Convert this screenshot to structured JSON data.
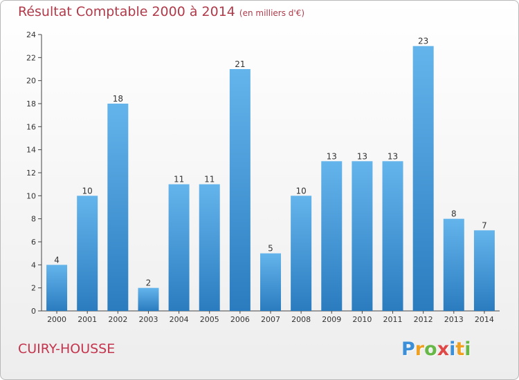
{
  "title": "Résultat Comptable 2000 à 2014",
  "subtitle": "(en milliers d'€)",
  "place": "CUIRY-HOUSSE",
  "logo": {
    "letters": [
      "P",
      "r",
      "o",
      "x",
      "i",
      "t",
      "i"
    ],
    "colors": [
      "#3a8fd8",
      "#f0a020",
      "#68b848",
      "#e04848",
      "#3a8fd8",
      "#f0a020",
      "#68b848"
    ]
  },
  "colors": {
    "bar_light": "#64b4ec",
    "bar_dark": "#2a7cbf",
    "title": "#b03a4a",
    "axis": "#444444"
  },
  "chart_data": {
    "type": "bar",
    "categories": [
      "2000",
      "2001",
      "2002",
      "2003",
      "2004",
      "2005",
      "2006",
      "2007",
      "2008",
      "2009",
      "2010",
      "2011",
      "2012",
      "2013",
      "2014"
    ],
    "values": [
      4,
      10,
      18,
      2,
      11,
      11,
      21,
      5,
      10,
      13,
      13,
      13,
      23,
      8,
      7
    ],
    "ylim": [
      0,
      24
    ],
    "yticks": [
      0,
      2,
      4,
      6,
      8,
      10,
      12,
      14,
      16,
      18,
      20,
      22,
      24
    ],
    "grid": false
  }
}
